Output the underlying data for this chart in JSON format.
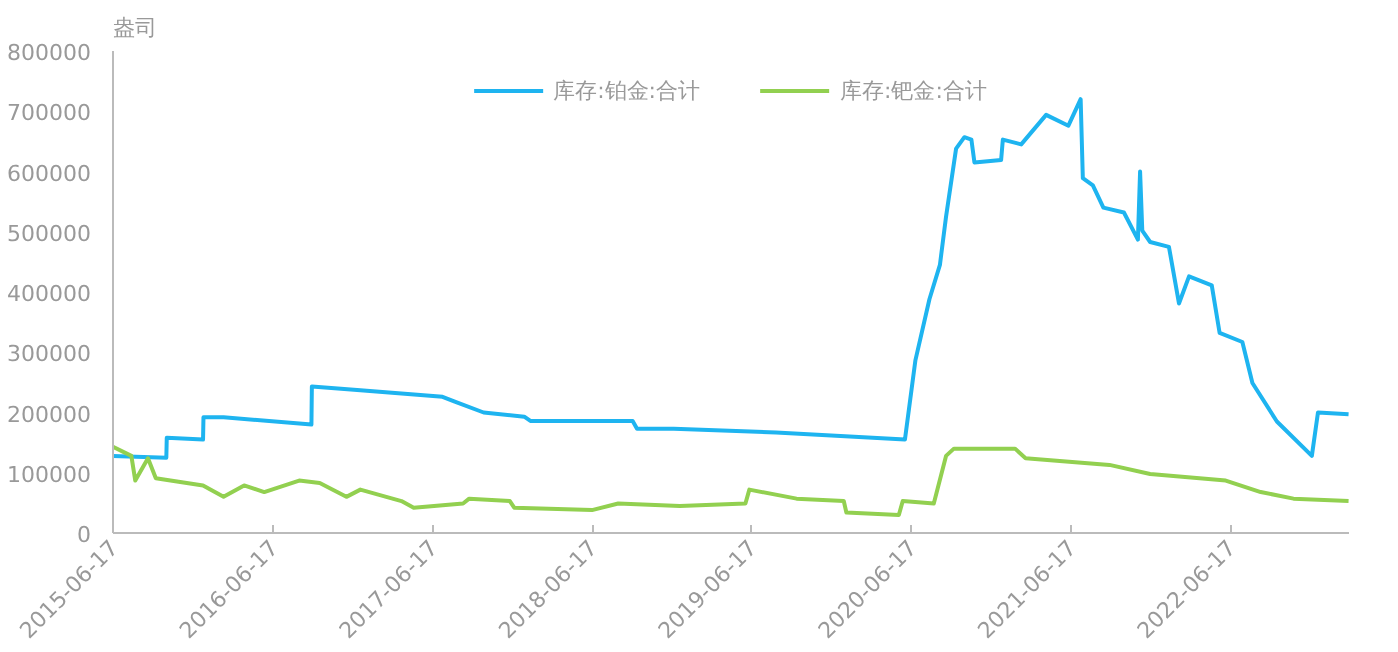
{
  "chart_data": {
    "type": "line",
    "ylabel": "盎司",
    "xlim": [
      "2015-06-17",
      "2023-03-15"
    ],
    "xticks": [
      "2015-06-17",
      "2016-06-17",
      "2017-06-17",
      "2018-06-17",
      "2019-06-17",
      "2020-06-17",
      "2021-06-17",
      "2022-06-17"
    ],
    "ylim": [
      0,
      800000
    ],
    "yticks": [
      0,
      100000,
      200000,
      300000,
      400000,
      500000,
      600000,
      700000,
      800000
    ],
    "grid": false,
    "legend": "top",
    "marker": "none",
    "line_style": "solid",
    "series": [
      {
        "name": "库存:铂金:合计",
        "color": "#1eb4f0",
        "x": [
          "2015-06-17",
          "2015-10-17",
          "2015-10-18",
          "2016-01-09",
          "2016-01-10",
          "2016-02-25",
          "2016-09-13",
          "2016-09-14",
          "2017-01-03",
          "2017-07-10",
          "2017-08-07",
          "2017-10-12",
          "2018-01-13",
          "2018-01-27",
          "2018-09-18",
          "2018-09-28",
          "2018-12-21",
          "2019-08-12",
          "2020-06-02",
          "2020-06-26",
          "2020-07-28",
          "2020-08-21",
          "2020-09-04",
          "2020-09-27",
          "2020-10-16",
          "2020-11-01",
          "2020-11-08",
          "2021-01-08",
          "2021-01-12",
          "2021-02-23",
          "2021-04-21",
          "2021-06-11",
          "2021-07-09",
          "2021-07-14",
          "2021-08-06",
          "2021-08-30",
          "2021-10-16",
          "2021-11-17",
          "2021-11-22",
          "2021-11-27",
          "2021-12-15",
          "2022-01-27",
          "2022-02-19",
          "2022-03-14",
          "2022-05-05",
          "2022-05-23",
          "2022-07-14",
          "2022-08-06",
          "2022-10-01",
          "2022-12-20",
          "2023-01-03",
          "2023-03-14"
        ],
        "values": [
          128000,
          125000,
          158000,
          155000,
          192000,
          192000,
          180000,
          243000,
          237000,
          226000,
          218000,
          200000,
          193000,
          186000,
          186000,
          173000,
          173000,
          167000,
          155000,
          287000,
          388000,
          445000,
          525000,
          638000,
          657000,
          653000,
          615000,
          619000,
          653000,
          645000,
          694000,
          676000,
          720000,
          589000,
          577000,
          540000,
          532000,
          487000,
          600000,
          502000,
          483000,
          475000,
          381000,
          426000,
          411000,
          332000,
          317000,
          249000,
          185000,
          128000,
          200000,
          197000
        ]
      },
      {
        "name": "库存:钯金:合计",
        "color": "#92d050",
        "x": [
          "2015-06-17",
          "2015-07-29",
          "2015-08-07",
          "2015-09-05",
          "2015-09-23",
          "2016-01-09",
          "2016-02-25",
          "2016-04-12",
          "2016-05-28",
          "2016-08-16",
          "2016-10-02",
          "2016-12-02",
          "2017-01-03",
          "2017-04-07",
          "2017-05-05",
          "2017-08-26",
          "2017-09-09",
          "2017-12-11",
          "2017-12-21",
          "2018-06-17",
          "2018-08-16",
          "2019-01-04",
          "2019-06-03",
          "2019-06-12",
          "2019-09-28",
          "2020-01-14",
          "2020-01-20",
          "2020-05-19",
          "2020-05-28",
          "2020-08-07",
          "2020-09-04",
          "2020-09-22",
          "2021-02-09",
          "2021-03-05",
          "2021-09-13",
          "2021-12-15",
          "2022-06-06",
          "2022-08-25",
          "2022-11-08",
          "2023-03-14"
        ],
        "values": [
          143000,
          128000,
          87000,
          124000,
          91000,
          79000,
          60000,
          79000,
          68000,
          87000,
          83000,
          60000,
          72000,
          53000,
          42000,
          49000,
          57000,
          53000,
          42000,
          38000,
          49000,
          45000,
          49000,
          72000,
          57000,
          53000,
          34000,
          30000,
          53000,
          49000,
          128000,
          140000,
          140000,
          124000,
          113000,
          98000,
          87000,
          68000,
          57000,
          53000
        ]
      }
    ]
  }
}
